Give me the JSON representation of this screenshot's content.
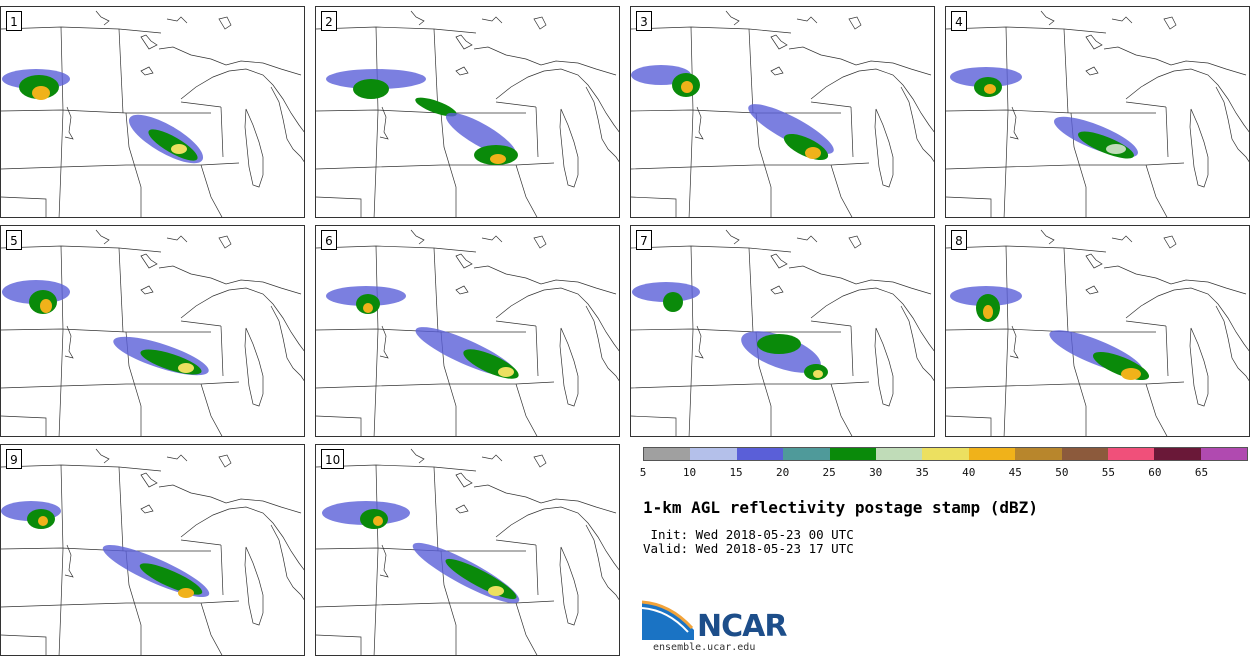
{
  "panels": [
    {
      "label": "1"
    },
    {
      "label": "2"
    },
    {
      "label": "3"
    },
    {
      "label": "4"
    },
    {
      "label": "5"
    },
    {
      "label": "6"
    },
    {
      "label": "7"
    },
    {
      "label": "8"
    },
    {
      "label": "9"
    },
    {
      "label": "10"
    }
  ],
  "colorbar": {
    "ticks": [
      "5",
      "10",
      "15",
      "20",
      "25",
      "30",
      "35",
      "40",
      "45",
      "50",
      "55",
      "60",
      "65"
    ],
    "colors": [
      "#a0a0a0",
      "#b4c0ea",
      "#5a5fd8",
      "#4f9a9a",
      "#0a8a0a",
      "#c0dcb8",
      "#ece060",
      "#f0b21a",
      "#b8862c",
      "#8c5a3c",
      "#f0507a",
      "#6a1838",
      "#b04ab0"
    ]
  },
  "title": "1-km AGL reflectivity postage stamp (dBZ)",
  "init": " Init: Wed 2018-05-23 00 UTC",
  "valid": "Valid: Wed 2018-05-23 17 UTC",
  "logo": {
    "text": "NCAR",
    "url": "ensemble.ucar.edu"
  }
}
